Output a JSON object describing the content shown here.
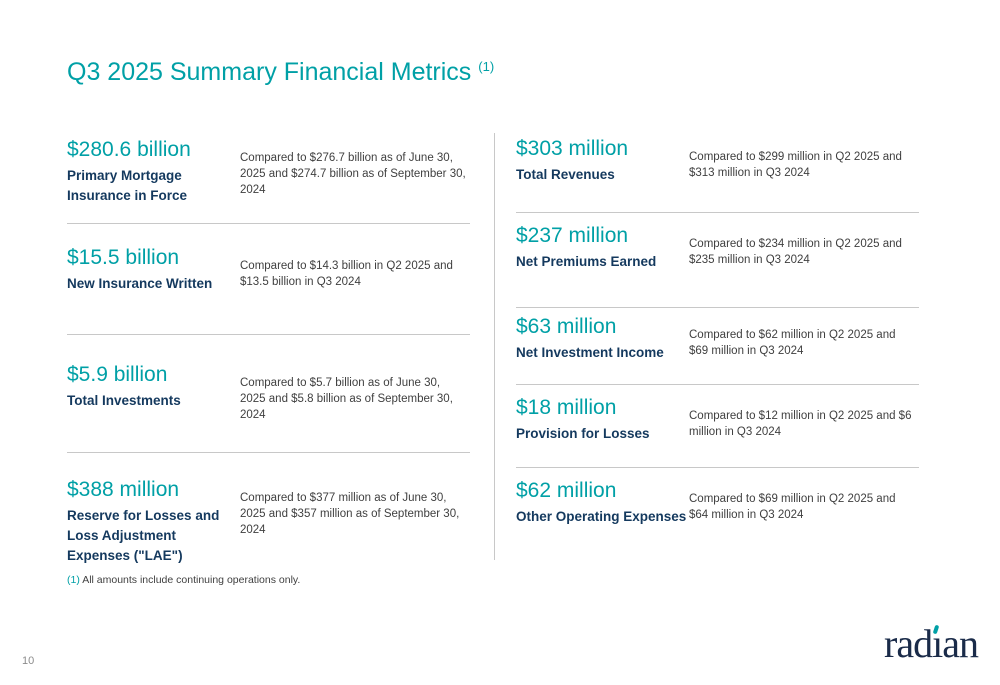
{
  "page": {
    "title": "Q3 2025 Summary Financial Metrics",
    "title_footnote_ref": "(1)",
    "page_number": "10"
  },
  "footnote": {
    "marker": "(1)",
    "text": "All amounts include continuing operations only."
  },
  "logo": {
    "pre": "rad",
    "i": "ı",
    "post": "an"
  },
  "colors": {
    "accent_teal": "#00A0A6",
    "label_navy": "#14395E",
    "body_text": "#3F3F3F",
    "divider_gray": "#C8C8C8",
    "logo_navy": "#1A2B49"
  },
  "columns": [
    {
      "name": "left",
      "metrics": [
        {
          "value": "$280.6 billion",
          "label": "Primary Mortgage Insurance in Force",
          "comparison": "Compared to $276.7 billion as of June 30, 2025 and $274.7 billion as of September 30, 2024"
        },
        {
          "value": "$15.5 billion",
          "label": "New Insurance Written",
          "comparison": "Compared to $14.3 billion in Q2 2025 and $13.5 billion in Q3 2024"
        },
        {
          "value": "$5.9 billion",
          "label": "Total Investments",
          "comparison": "Compared to $5.7 billion as of June 30, 2025 and $5.8 billion as of September 30, 2024"
        },
        {
          "value": "$388 million",
          "label": "Reserve for Losses and Loss Adjustment Expenses (\"LAE\")",
          "comparison": "Compared to $377 million as of June 30, 2025 and $357 million as of September 30, 2024"
        }
      ]
    },
    {
      "name": "right",
      "metrics": [
        {
          "value": "$303 million",
          "label": "Total Revenues",
          "comparison": "Compared to $299 million in Q2 2025 and $313 million in Q3 2024"
        },
        {
          "value": "$237 million",
          "label": "Net Premiums Earned",
          "comparison": "Compared to $234 million in Q2 2025 and $235 million in Q3 2024"
        },
        {
          "value": "$63 million",
          "label": "Net Investment Income",
          "comparison": "Compared to $62 million in Q2 2025 and $69 million in Q3 2024"
        },
        {
          "value": "$18 million",
          "label": "Provision for Losses",
          "comparison": "Compared to $12 million in Q2 2025 and $6 million in Q3 2024"
        },
        {
          "value": "$62 million",
          "label": "Other Operating Expenses",
          "comparison": "Compared to $69 million in Q2 2025 and $64 million in Q3 2024"
        }
      ]
    }
  ]
}
